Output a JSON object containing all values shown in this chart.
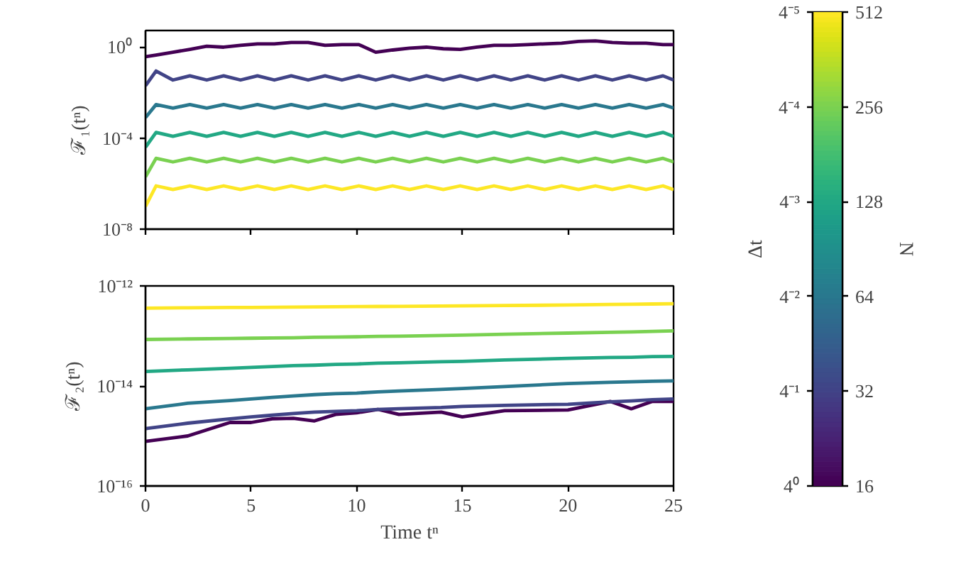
{
  "chart_data": [
    {
      "type": "line",
      "ylabel": "ℱ₁(tⁿ)",
      "annotations": [
        "Δt",
        "4⁰",
        "4⁻¹",
        "4⁻²",
        "4⁻³",
        "4⁻⁴",
        "4⁻⁵",
        "N",
        "16",
        "32",
        "64",
        "128",
        "256",
        "512"
      ],
      "log": "y",
      "grid": false,
      "tick_labels": "y",
      "xlim": [
        0,
        25
      ],
      "xticks": [
        0,
        5,
        10,
        15,
        20,
        25
      ],
      "ylim": [
        1e-08,
        5.4
      ],
      "yticks": [
        {
          "value": 1,
          "label": "10⁰"
        },
        {
          "value": 0.0001,
          "label": "10⁻⁴"
        },
        {
          "value": 1e-08,
          "label": "10⁻⁸"
        }
      ],
      "x": [
        0,
        0.5,
        1.3,
        2.1,
        2.9,
        3.7,
        4.5,
        5.3,
        6.1,
        6.9,
        7.7,
        8.5,
        9.3,
        10.1,
        10.9,
        11.7,
        12.5,
        13.3,
        14.1,
        14.9,
        15.7,
        16.5,
        17.3,
        18.1,
        18.9,
        19.7,
        20.5,
        21.3,
        22.1,
        22.9,
        23.7,
        24.5,
        25
      ],
      "series": [
        {
          "color": "#440154",
          "values": [
            0.38,
            0.45,
            0.6,
            0.8,
            1.1,
            1.0,
            1.2,
            1.4,
            1.4,
            1.6,
            1.6,
            1.2,
            1.3,
            1.3,
            0.6,
            0.75,
            0.9,
            1.0,
            0.85,
            0.8,
            1.0,
            1.2,
            1.2,
            1.3,
            1.4,
            1.5,
            1.8,
            1.9,
            1.6,
            1.5,
            1.5,
            1.3,
            1.3
          ]
        },
        {
          "color": "#414487",
          "values": [
            0.02,
            0.09,
            0.036,
            0.055,
            0.036,
            0.055,
            0.036,
            0.055,
            0.036,
            0.055,
            0.036,
            0.055,
            0.036,
            0.055,
            0.036,
            0.055,
            0.036,
            0.055,
            0.036,
            0.055,
            0.036,
            0.055,
            0.036,
            0.055,
            0.036,
            0.055,
            0.036,
            0.055,
            0.036,
            0.055,
            0.036,
            0.055,
            0.036
          ]
        },
        {
          "color": "#2a788e",
          "values": [
            0.0008,
            0.003,
            0.0021,
            0.003,
            0.0021,
            0.003,
            0.0021,
            0.003,
            0.0021,
            0.003,
            0.0021,
            0.003,
            0.0021,
            0.003,
            0.0021,
            0.003,
            0.0021,
            0.003,
            0.0021,
            0.003,
            0.0021,
            0.003,
            0.0021,
            0.003,
            0.0021,
            0.003,
            0.0021,
            0.003,
            0.0021,
            0.003,
            0.0021,
            0.003,
            0.0021
          ]
        },
        {
          "color": "#22a884",
          "values": [
            4e-05,
            0.00018,
            0.00012,
            0.00018,
            0.00012,
            0.00018,
            0.00012,
            0.00018,
            0.00012,
            0.00018,
            0.00012,
            0.00018,
            0.00012,
            0.00018,
            0.00012,
            0.00018,
            0.00012,
            0.00018,
            0.00012,
            0.00018,
            0.00012,
            0.00018,
            0.00012,
            0.00018,
            0.00012,
            0.00018,
            0.00012,
            0.00018,
            0.00012,
            0.00018,
            0.00012,
            0.00018,
            0.00012
          ]
        },
        {
          "color": "#7ad151",
          "values": [
            2e-06,
            1.3e-05,
            9e-06,
            1.3e-05,
            9e-06,
            1.3e-05,
            9e-06,
            1.3e-05,
            9e-06,
            1.3e-05,
            9e-06,
            1.3e-05,
            9e-06,
            1.3e-05,
            9e-06,
            1.3e-05,
            9e-06,
            1.3e-05,
            9e-06,
            1.3e-05,
            9e-06,
            1.3e-05,
            9e-06,
            1.3e-05,
            9e-06,
            1.3e-05,
            9e-06,
            1.3e-05,
            9e-06,
            1.3e-05,
            9e-06,
            1.3e-05,
            9e-06
          ]
        },
        {
          "color": "#fde725",
          "values": [
            1e-07,
            8e-07,
            5.5e-07,
            8e-07,
            5.5e-07,
            8e-07,
            5.5e-07,
            8e-07,
            5.5e-07,
            8e-07,
            5.5e-07,
            8e-07,
            5.5e-07,
            8e-07,
            5.5e-07,
            8e-07,
            5.5e-07,
            8e-07,
            5.5e-07,
            8e-07,
            5.5e-07,
            8e-07,
            5.5e-07,
            8e-07,
            5.5e-07,
            8e-07,
            5.5e-07,
            8e-07,
            5.5e-07,
            8e-07,
            5.5e-07,
            8e-07,
            5.5e-07
          ]
        }
      ]
    },
    {
      "type": "line",
      "ylabel": "ℱ₂(tⁿ)",
      "xlabel": "Time tⁿ",
      "log": "y",
      "grid": false,
      "xlim": [
        0,
        25
      ],
      "xticks": [
        0,
        5,
        10,
        15,
        20,
        25
      ],
      "ylim": [
        1e-16,
        1e-12
      ],
      "yticks": [
        {
          "value": 1e-12,
          "label": "10⁻¹²"
        },
        {
          "value": 1e-14,
          "label": "10⁻¹⁴"
        },
        {
          "value": 1e-16,
          "label": "10⁻¹⁶"
        }
      ],
      "x": [
        0,
        2,
        4,
        5,
        6,
        7,
        8,
        9,
        10,
        11,
        12,
        14,
        15,
        17,
        20,
        22,
        23,
        24,
        25
      ],
      "series": [
        {
          "color": "#440154",
          "values": [
            7.8e-16,
            1e-15,
            1.86e-15,
            1.86e-15,
            2.2e-15,
            2.25e-15,
            2e-15,
            2.7e-15,
            2.9e-15,
            3.4e-15,
            2.7e-15,
            3e-15,
            2.4e-15,
            3.2e-15,
            3.3e-15,
            4.9e-15,
            3.5e-15,
            4.9e-15,
            4.9e-15
          ]
        },
        {
          "color": "#414487",
          "values": [
            1.4e-15,
            1.8e-15,
            2.2e-15,
            2.4e-15,
            2.6e-15,
            2.8e-15,
            3e-15,
            3.1e-15,
            3.2e-15,
            3.4e-15,
            3.5e-15,
            3.7e-15,
            3.9e-15,
            4.1e-15,
            4.3e-15,
            4.8e-15,
            5e-15,
            5.3e-15,
            5.5e-15
          ]
        },
        {
          "color": "#2a788e",
          "values": [
            3.5e-15,
            4.5e-15,
            5.1e-15,
            5.5e-15,
            5.9e-15,
            6.3e-15,
            6.7e-15,
            7e-15,
            7.2e-15,
            7.6e-15,
            7.9e-15,
            8.5e-15,
            8.9e-15,
            9.7e-15,
            1.12e-14,
            1.18e-14,
            1.21e-14,
            1.24e-14,
            1.26e-14
          ]
        },
        {
          "color": "#22a884",
          "values": [
            1.95e-14,
            2.1e-14,
            2.25e-14,
            2.35e-14,
            2.45e-14,
            2.55e-14,
            2.6e-14,
            2.7e-14,
            2.75e-14,
            2.85e-14,
            2.9e-14,
            3.05e-14,
            3.1e-14,
            3.3e-14,
            3.55e-14,
            3.7e-14,
            3.75e-14,
            3.85e-14,
            3.9e-14
          ]
        },
        {
          "color": "#7ad151",
          "values": [
            8.5e-14,
            8.7e-14,
            8.9e-14,
            9e-14,
            9.1e-14,
            9.2e-14,
            9.4e-14,
            9.5e-14,
            9.6e-14,
            9.8e-14,
            9.9e-14,
            1.02e-13,
            1.04e-13,
            1.08e-13,
            1.14e-13,
            1.18e-13,
            1.2e-13,
            1.23e-13,
            1.26e-13
          ]
        },
        {
          "color": "#fde725",
          "values": [
            3.6e-13,
            3.65e-13,
            3.7e-13,
            3.72e-13,
            3.75e-13,
            3.78e-13,
            3.8e-13,
            3.83e-13,
            3.85e-13,
            3.88e-13,
            3.9e-13,
            3.95e-13,
            3.98e-13,
            4.05e-13,
            4.15e-13,
            4.25e-13,
            4.3e-13,
            4.35e-13,
            4.4e-13
          ]
        }
      ]
    }
  ]
}
